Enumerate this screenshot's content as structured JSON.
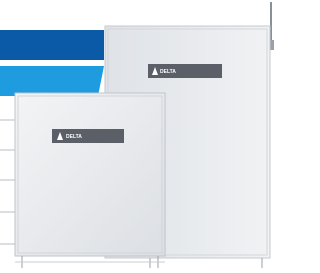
{
  "back_cabinet": {
    "logo": "DELTA"
  },
  "front_cabinet": {
    "logo": "DELTA"
  }
}
